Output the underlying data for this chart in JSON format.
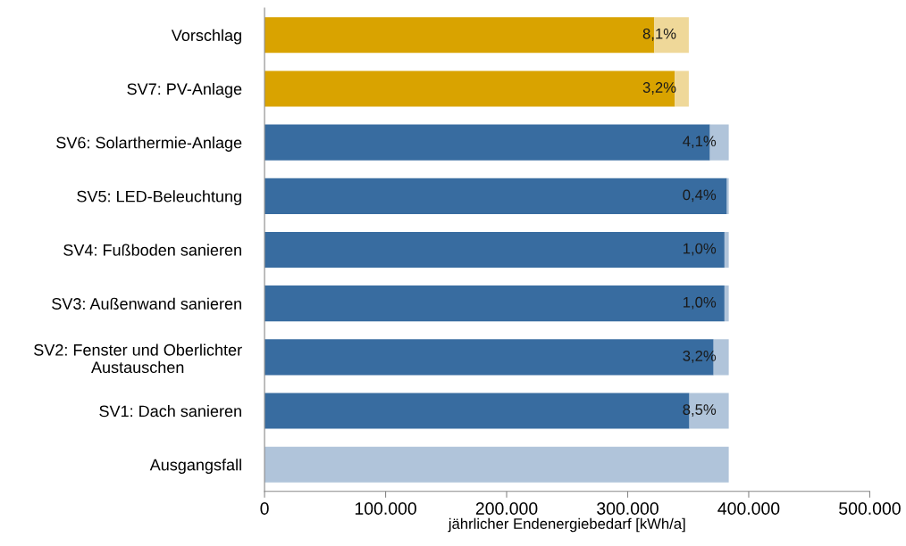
{
  "chart_data": {
    "type": "bar",
    "orientation": "horizontal",
    "stacked": true,
    "categories": [
      "Vorschlag",
      "SV7: PV-Anlage",
      "SV6: Solarthermie-Anlage",
      "SV5: LED-Beleuchtung",
      "SV4: Fußboden sanieren",
      "SV3: Außenwand sanieren",
      "SV2: Fenster und Oberlichter\nAustauschen",
      "SV1: Dach sanieren",
      "Ausgangsfall"
    ],
    "series": [
      {
        "colors": [
          "#d9a300",
          "#d9a300",
          "#386ca0",
          "#386ca0",
          "#386ca0",
          "#386ca0",
          "#386ca0",
          "#386ca0",
          "#386ca0"
        ],
        "values": [
          322000,
          339000,
          368000,
          382000,
          380000,
          380000,
          371000,
          351000,
          0
        ]
      },
      {
        "colors": [
          "#efd899",
          "#efd899",
          "#b0c4da",
          "#b0c4da",
          "#b0c4da",
          "#b0c4da",
          "#b0c4da",
          "#b0c4da",
          "#b0c4da"
        ],
        "values": [
          28500,
          11500,
          15500,
          1500,
          3500,
          3500,
          12500,
          32500,
          383500
        ]
      }
    ],
    "annotations": [
      "8,1%",
      "3,2%",
      "4,1%",
      "0,4%",
      "1,0%",
      "1,0%",
      "3,2%",
      "8,5%"
    ],
    "xlabel": "jährlicher Endenergiebedarf [kWh/a]",
    "xlim": [
      0,
      500000
    ],
    "xticks": [
      0,
      {
        "value": 100000,
        "label": "100.000"
      },
      {
        "value": 200000,
        "label": "200.000"
      },
      {
        "value": 300000,
        "label": "300.000"
      },
      {
        "value": 400000,
        "label": "400.000"
      },
      {
        "value": 500000,
        "label": "500.000"
      }
    ],
    "grid": false,
    "legend": false
  }
}
